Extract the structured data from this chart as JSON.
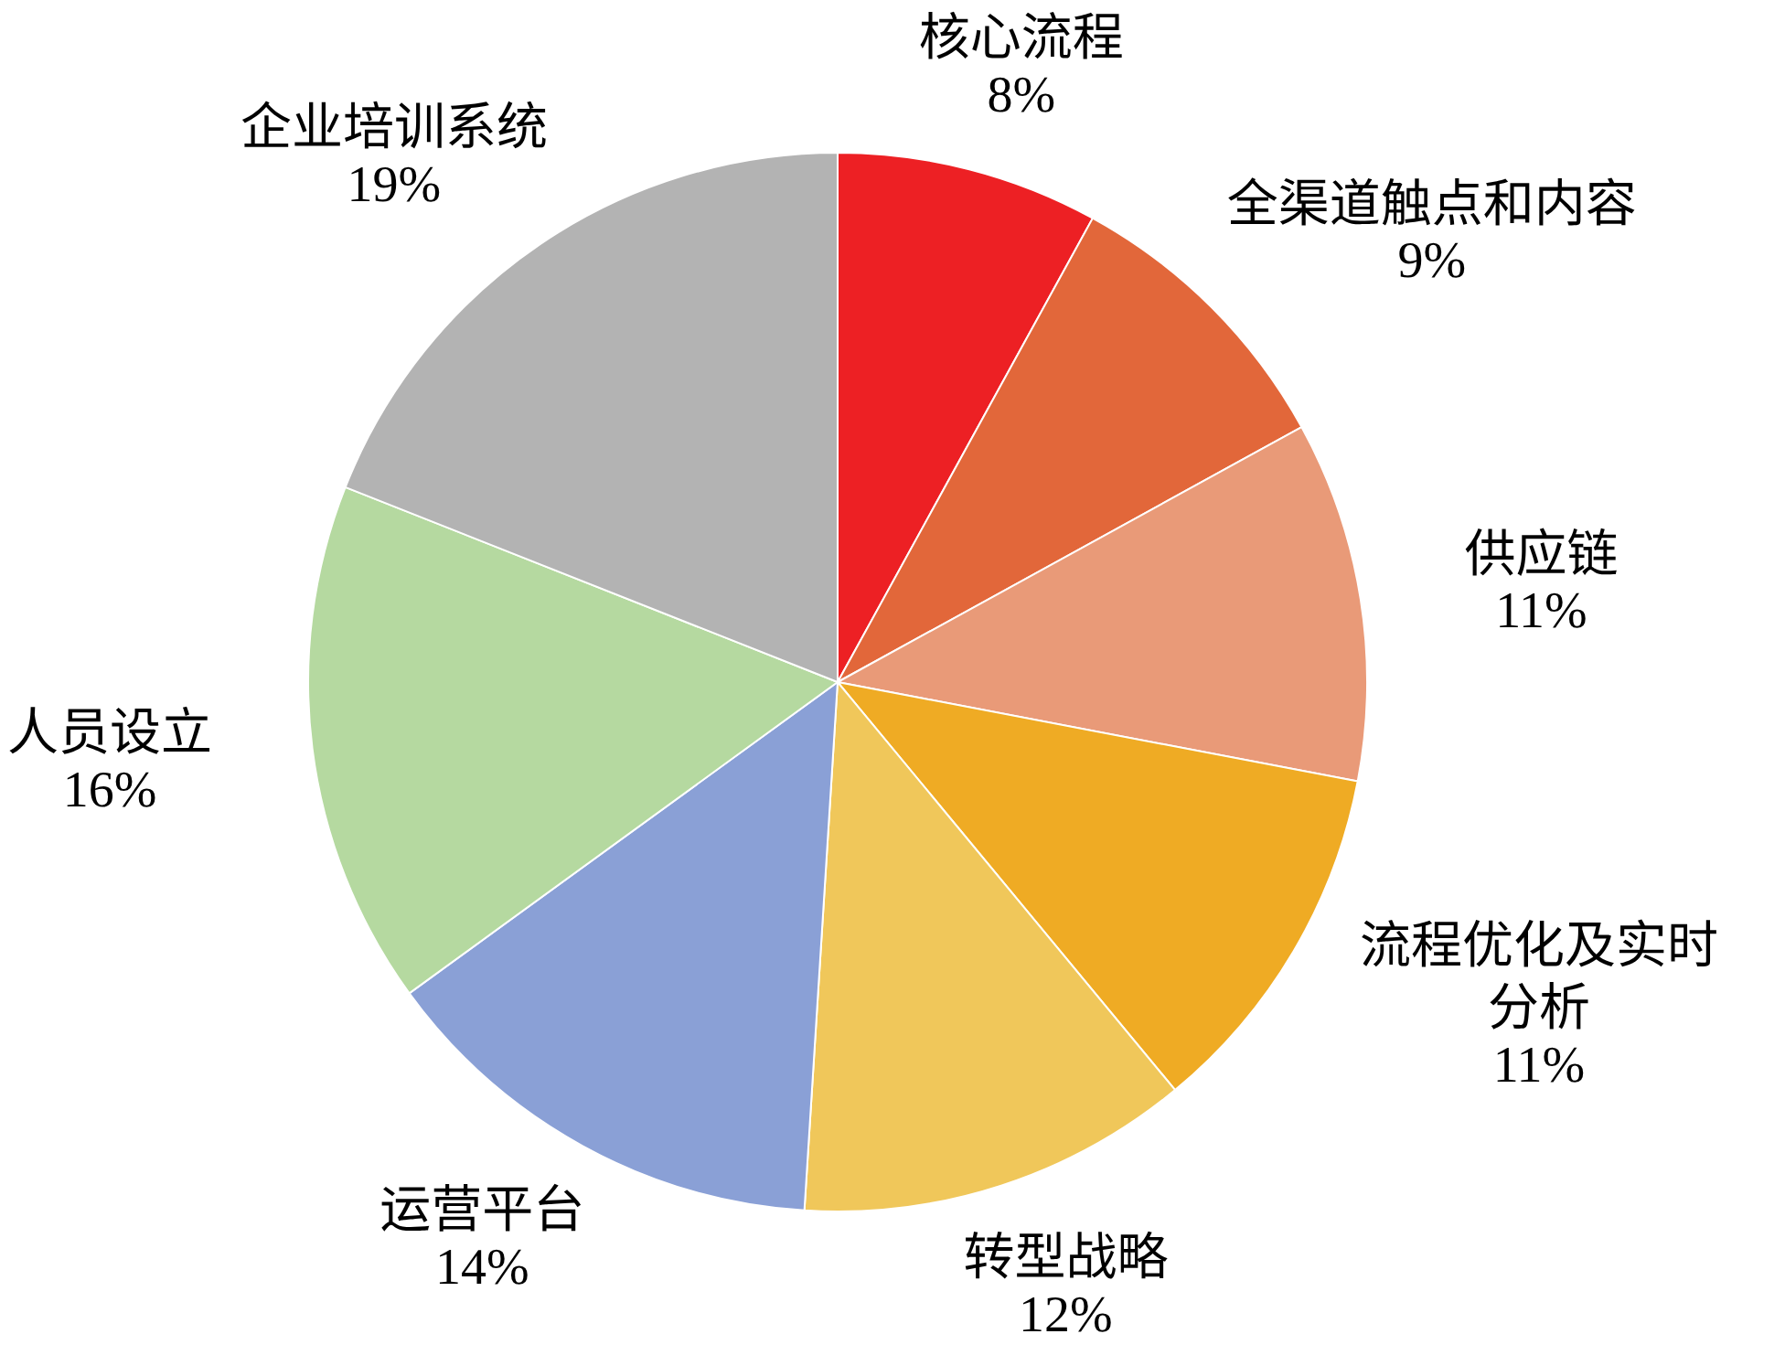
{
  "chart_data": {
    "type": "pie",
    "categories": [
      "核心流程",
      "全渠道触点和内容",
      "供应链",
      "流程优化及实时分析",
      "转型战略",
      "运营平台",
      "人员设立",
      "企业培训系统"
    ],
    "values": [
      8,
      9,
      11,
      11,
      12,
      14,
      16,
      19
    ],
    "value_labels": [
      "8%",
      "9%",
      "11%",
      "11%",
      "12%",
      "14%",
      "16%",
      "19%"
    ],
    "colors": [
      "#ed2024",
      "#e2673a",
      "#e99a78",
      "#efab24",
      "#f0c75a",
      "#8aa0d6",
      "#b5d9a0",
      "#b3b3b3"
    ],
    "legend": false
  }
}
